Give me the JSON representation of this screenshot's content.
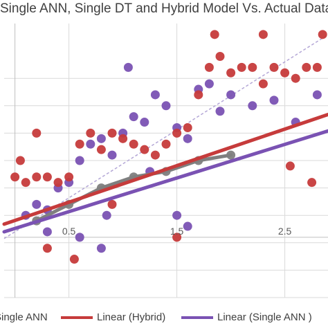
{
  "chart_data": {
    "type": "scatter",
    "title": "Single ANN, Single DT and Hybrid Model Vs. Actual Data",
    "xlim": [
      -0.1,
      2.9
    ],
    "ylim": [
      -0.55,
      1.95
    ],
    "x_ticks": [
      "0.5",
      "1.5",
      "2.5"
    ],
    "x_tick_values": [
      0.5,
      1.5,
      2.5
    ],
    "grid": true,
    "legend_position": "bottom",
    "colors": {
      "hybrid": "#c63b3b",
      "ann": "#7a52b3",
      "dt": "#7f7f7f",
      "reference": "#b3a6d6"
    },
    "series": [
      {
        "name": "Single ANN",
        "kind": "points",
        "color": "#7a52b3",
        "points": [
          [
            0.1,
            0.2
          ],
          [
            0.2,
            0.3
          ],
          [
            0.3,
            0.25
          ],
          [
            0.4,
            0.45
          ],
          [
            0.5,
            0.5
          ],
          [
            0.6,
            0.7
          ],
          [
            0.7,
            0.85
          ],
          [
            0.8,
            0.9
          ],
          [
            0.9,
            0.75
          ],
          [
            1.0,
            0.95
          ],
          [
            1.1,
            1.1
          ],
          [
            1.2,
            1.05
          ],
          [
            1.3,
            1.3
          ],
          [
            1.4,
            1.2
          ],
          [
            1.5,
            1.0
          ],
          [
            1.6,
            0.9
          ],
          [
            1.7,
            1.35
          ],
          [
            1.8,
            1.4
          ],
          [
            1.9,
            1.15
          ],
          [
            2.0,
            1.3
          ],
          [
            2.2,
            1.2
          ],
          [
            2.4,
            1.25
          ],
          [
            2.6,
            1.05
          ],
          [
            2.8,
            1.3
          ],
          [
            1.5,
            0.2
          ],
          [
            1.6,
            0.1
          ],
          [
            0.8,
            -0.1
          ],
          [
            0.6,
            0.0
          ],
          [
            0.3,
            0.05
          ],
          [
            1.05,
            1.55
          ],
          [
            0.85,
            0.2
          ],
          [
            1.25,
            0.6
          ]
        ]
      },
      {
        "name": "Single DT",
        "kind": "points",
        "color": "#7f7f7f",
        "points": [
          [
            0.2,
            0.15
          ],
          [
            0.5,
            0.3
          ],
          [
            0.8,
            0.45
          ],
          [
            1.1,
            0.55
          ],
          [
            1.4,
            0.6
          ],
          [
            1.7,
            0.7
          ],
          [
            2.0,
            0.75
          ]
        ]
      },
      {
        "name": "Actual Data",
        "kind": "points",
        "color": "#c63b3b",
        "points": [
          [
            0.0,
            0.55
          ],
          [
            0.1,
            0.5
          ],
          [
            0.2,
            0.55
          ],
          [
            0.3,
            0.55
          ],
          [
            0.4,
            0.5
          ],
          [
            0.5,
            0.55
          ],
          [
            0.6,
            0.85
          ],
          [
            0.7,
            0.95
          ],
          [
            0.8,
            0.8
          ],
          [
            0.9,
            0.95
          ],
          [
            1.0,
            0.9
          ],
          [
            1.1,
            0.85
          ],
          [
            1.2,
            0.8
          ],
          [
            1.3,
            0.75
          ],
          [
            1.4,
            0.85
          ],
          [
            1.5,
            0.95
          ],
          [
            1.6,
            1.0
          ],
          [
            1.7,
            1.3
          ],
          [
            1.8,
            1.55
          ],
          [
            1.9,
            1.65
          ],
          [
            2.0,
            1.5
          ],
          [
            2.1,
            1.55
          ],
          [
            2.2,
            1.55
          ],
          [
            2.3,
            1.4
          ],
          [
            2.4,
            1.55
          ],
          [
            2.5,
            1.5
          ],
          [
            2.6,
            1.45
          ],
          [
            2.7,
            1.55
          ],
          [
            2.8,
            1.55
          ],
          [
            1.85,
            1.85
          ],
          [
            2.3,
            1.85
          ],
          [
            2.85,
            1.85
          ],
          [
            0.2,
            0.95
          ],
          [
            0.9,
            0.3
          ],
          [
            1.5,
            0.0
          ],
          [
            0.3,
            -0.1
          ],
          [
            0.55,
            -0.2
          ],
          [
            2.55,
            0.65
          ],
          [
            2.75,
            0.5
          ],
          [
            0.05,
            0.7
          ]
        ]
      },
      {
        "name": "Linear (Hybrid)",
        "kind": "line",
        "color": "#c63b3b",
        "x": [
          -0.1,
          2.9
        ],
        "y": [
          0.12,
          1.12
        ]
      },
      {
        "name": "Linear (Single ANN )",
        "kind": "line",
        "color": "#7a52b3",
        "x": [
          -0.1,
          2.9
        ],
        "y": [
          0.05,
          0.97
        ]
      }
    ],
    "legend": [
      "Single ANN",
      "Linear (Hybrid)",
      "Linear (Single ANN )"
    ]
  }
}
